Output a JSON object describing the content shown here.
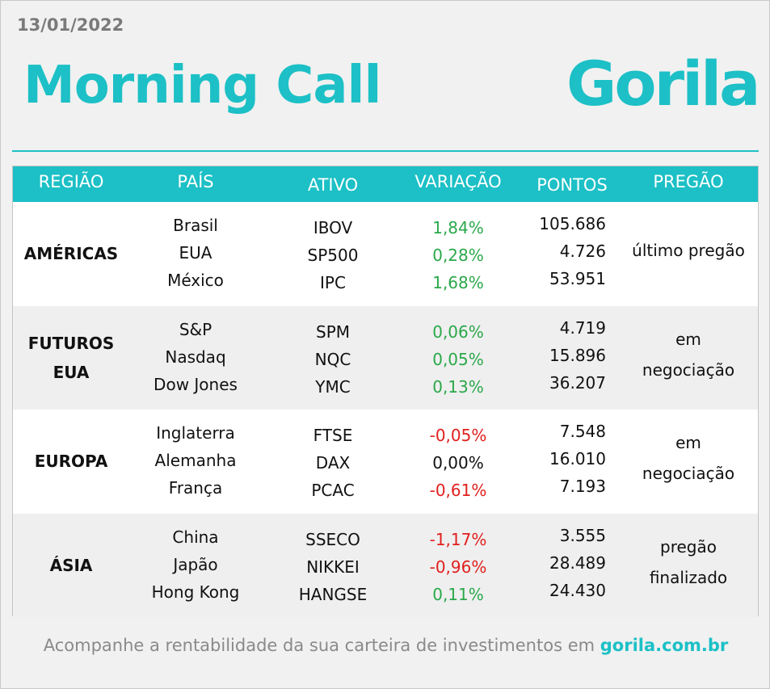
{
  "header": {
    "date": "13/01/2022",
    "title": "Morning Call",
    "logo": "Gorila"
  },
  "table": {
    "columns": [
      "REGIÃO",
      "PAÍS",
      "ATIVO",
      "VARIAÇÃO",
      "PONTOS",
      "PREGÃO"
    ],
    "groups": [
      {
        "region": "AMÉRICAS",
        "session": "último pregão",
        "rows": [
          {
            "country": "Brasil",
            "asset": "IBOV",
            "change": "1,84%",
            "points": "105.686",
            "color": "#2ba84a"
          },
          {
            "country": "EUA",
            "asset": "SP500",
            "change": "0,28%",
            "points": "4.726",
            "color": "#2ba84a"
          },
          {
            "country": "México",
            "asset": "IPC",
            "change": "1,68%",
            "points": "53.951",
            "color": "#2ba84a"
          }
        ]
      },
      {
        "region": "FUTUROS EUA",
        "session": "em negociação",
        "rows": [
          {
            "country": "S&P",
            "asset": "SPM",
            "change": "0,06%",
            "points": "4.719",
            "color": "#2ba84a"
          },
          {
            "country": "Nasdaq",
            "asset": "NQC",
            "change": "0,05%",
            "points": "15.896",
            "color": "#2ba84a"
          },
          {
            "country": "Dow Jones",
            "asset": "YMC",
            "change": "0,13%",
            "points": "36.207",
            "color": "#2ba84a"
          }
        ]
      },
      {
        "region": "EUROPA",
        "session": "em negociação",
        "rows": [
          {
            "country": "Inglaterra",
            "asset": "FTSE",
            "change": "-0,05%",
            "points": "7.548",
            "color": "#e0201e"
          },
          {
            "country": "Alemanha",
            "asset": "DAX",
            "change": "0,00%",
            "points": "16.010",
            "color": "#111111"
          },
          {
            "country": "França",
            "asset": "PCAC",
            "change": "-0,61%",
            "points": "7.193",
            "color": "#e0201e"
          }
        ]
      },
      {
        "region": "ÁSIA",
        "session": "pregão finalizado",
        "rows": [
          {
            "country": "China",
            "asset": "SSECO",
            "change": "-1,17%",
            "points": "3.555",
            "color": "#e0201e"
          },
          {
            "country": "Japão",
            "asset": "NIKKEI",
            "change": "-0,96%",
            "points": "28.489",
            "color": "#e0201e"
          },
          {
            "country": "Hong Kong",
            "asset": "HANGSE",
            "change": "0,11%",
            "points": "24.430",
            "color": "#2ba84a"
          }
        ]
      }
    ]
  },
  "footer": {
    "text": "Acompanhe a rentabilidade da sua carteira de investimentos em",
    "link": "gorila.com.br"
  }
}
